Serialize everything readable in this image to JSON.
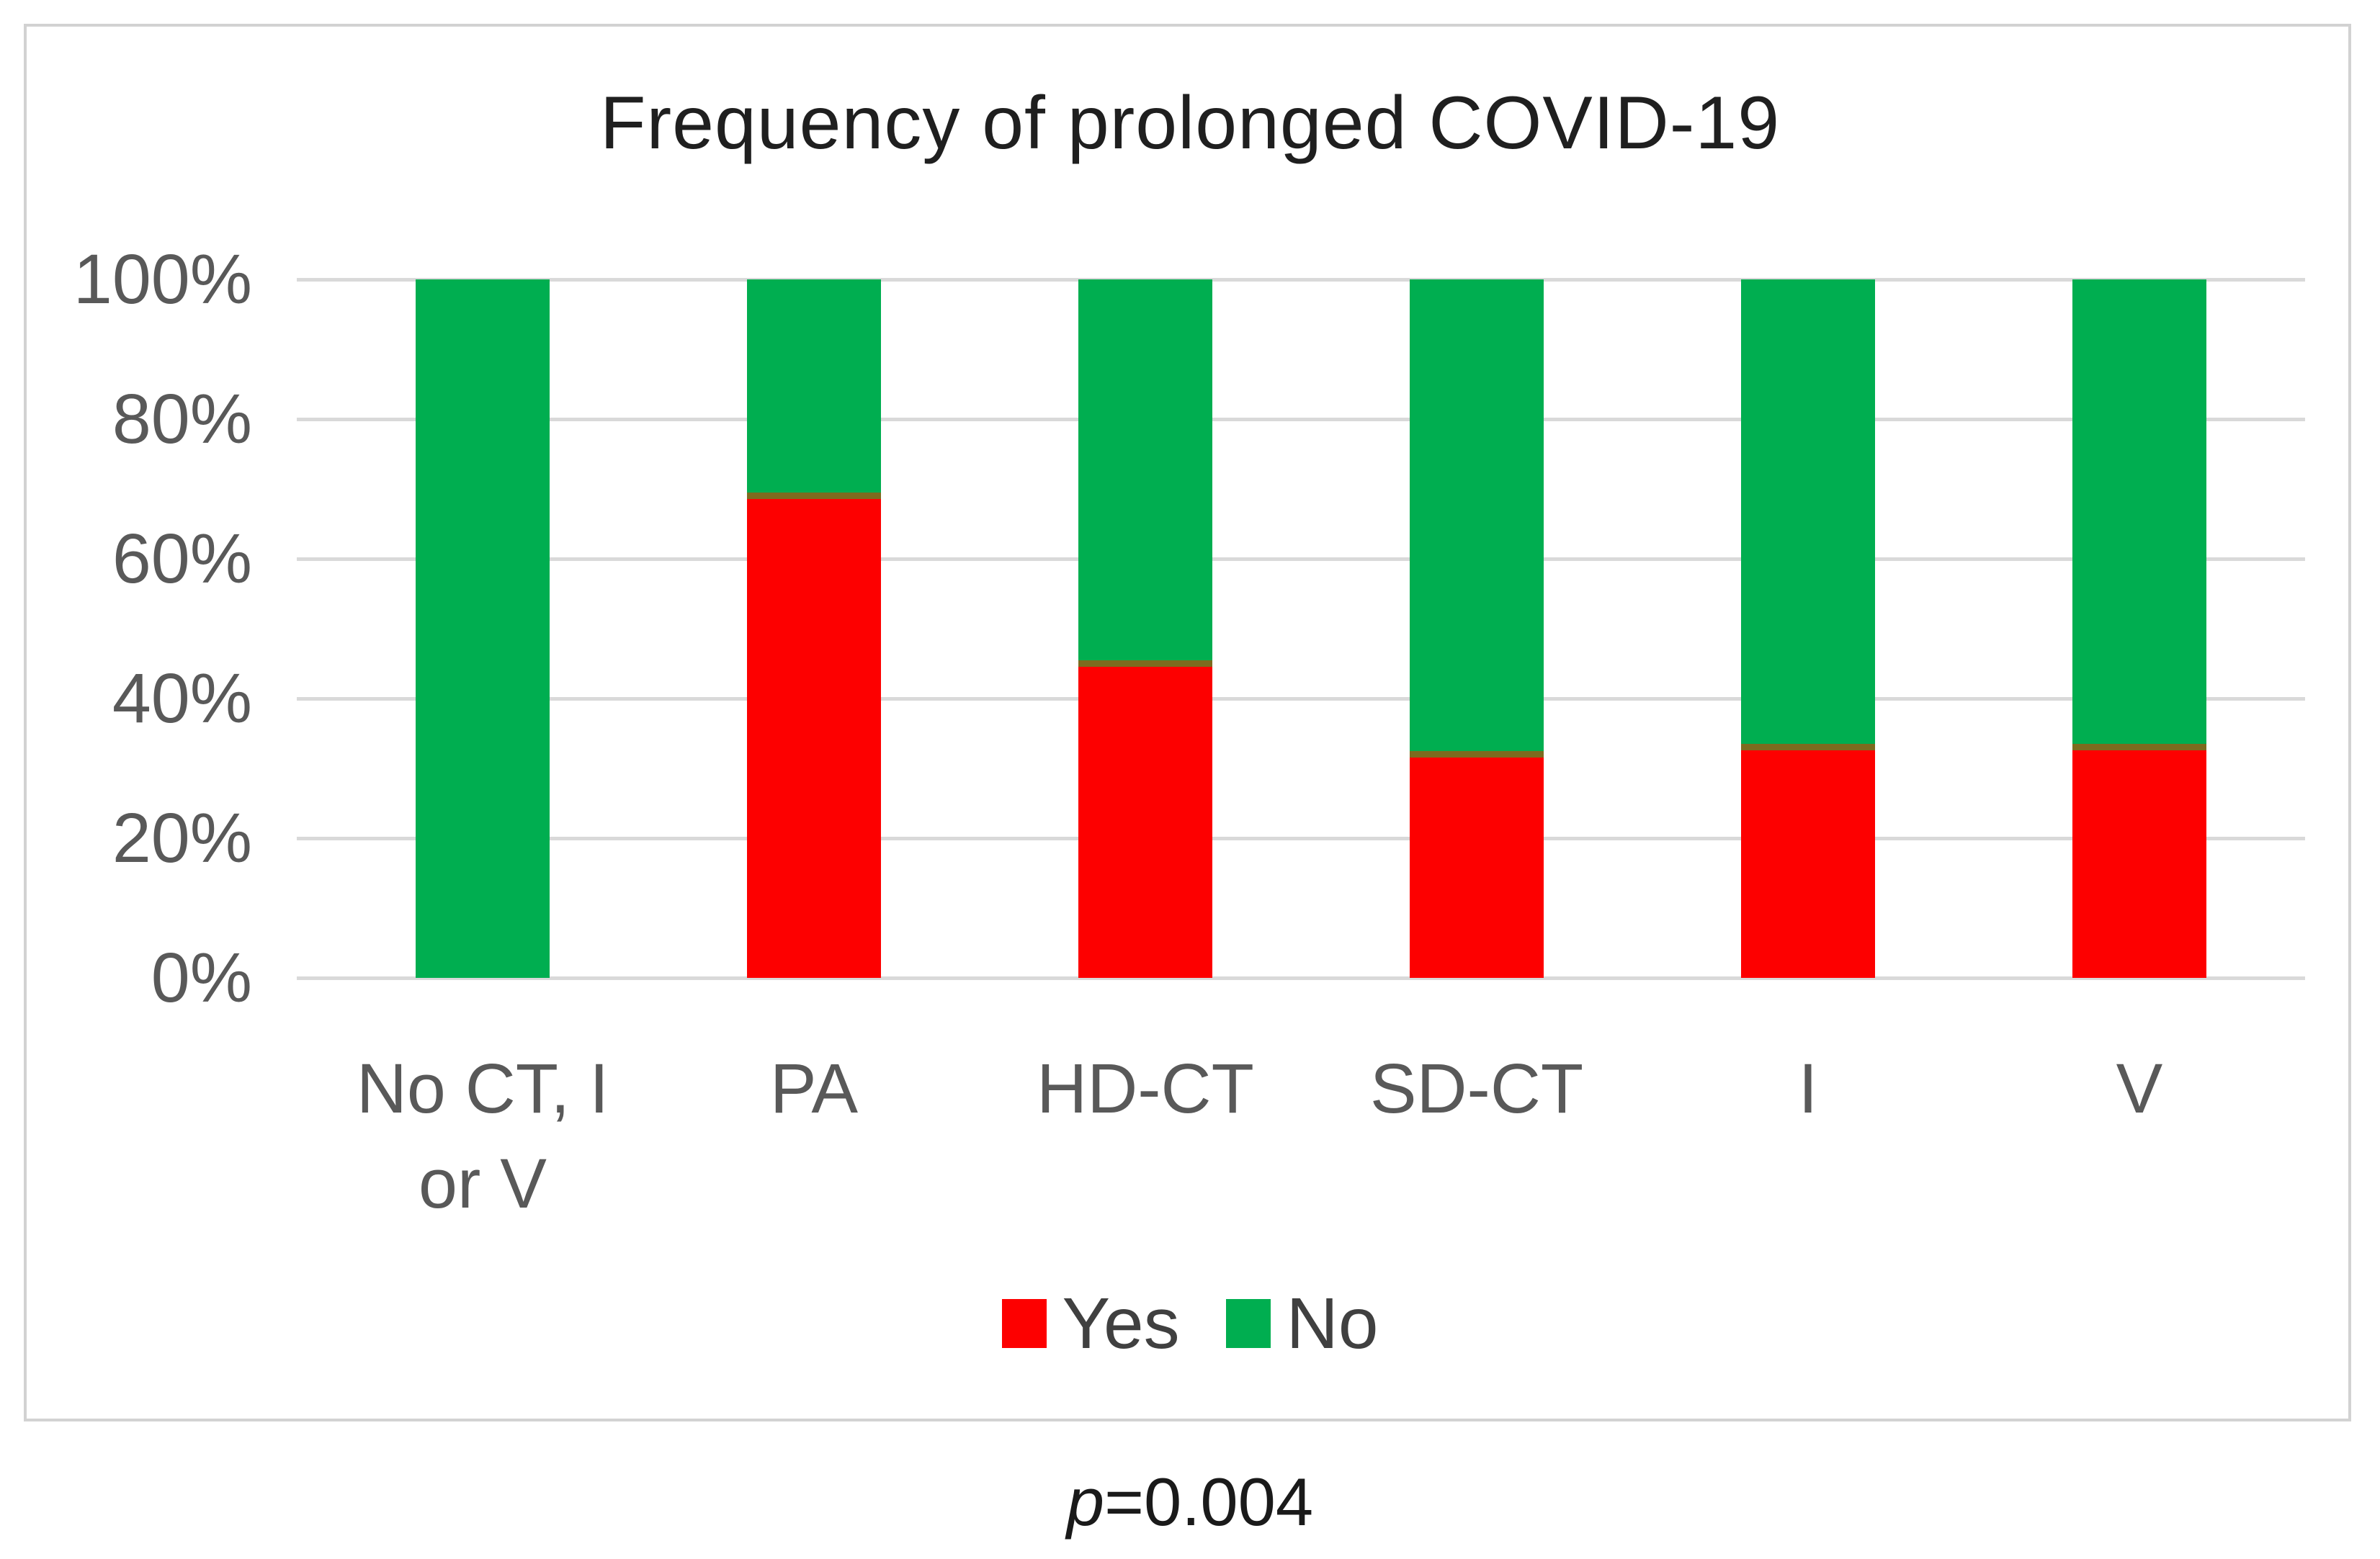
{
  "chart_data": {
    "type": "bar",
    "stacked": true,
    "percent_scale": true,
    "title": "Frequency of prolonged COVID-19",
    "categories": [
      "No CT, I or V",
      "PA",
      "HD-CT",
      "SD-CT",
      "I",
      "V"
    ],
    "category_lines": [
      [
        "No CT, I",
        "or V"
      ],
      [
        "PA"
      ],
      [
        "HD-CT"
      ],
      [
        "SD-CT"
      ],
      [
        "I"
      ],
      [
        "V"
      ]
    ],
    "series": [
      {
        "name": "Yes",
        "color": "#fd0000",
        "values": [
          0,
          69,
          45,
          32,
          33,
          33
        ]
      },
      {
        "name": "No",
        "color": "#00ae50",
        "values": [
          100,
          31,
          55,
          68,
          67,
          67
        ]
      }
    ],
    "y_ticks": [
      "100%",
      "80%",
      "60%",
      "40%",
      "20%",
      "0%"
    ],
    "ylim": [
      0,
      100
    ],
    "grid": true,
    "legend_position": "bottom",
    "legend_labels": [
      "Yes",
      "No"
    ]
  },
  "annotation": {
    "p_symbol": "p",
    "p_value": "=0.004"
  },
  "colors": {
    "yes_red": "#fd0000",
    "no_green": "#00ae50",
    "segment_divider": "#7d6b1f",
    "gridline": "#d9d9d9",
    "axis_text": "#595959",
    "frame_border": "#d2d2d2",
    "title_text": "#1f1f1f",
    "legend_text": "#404040"
  }
}
